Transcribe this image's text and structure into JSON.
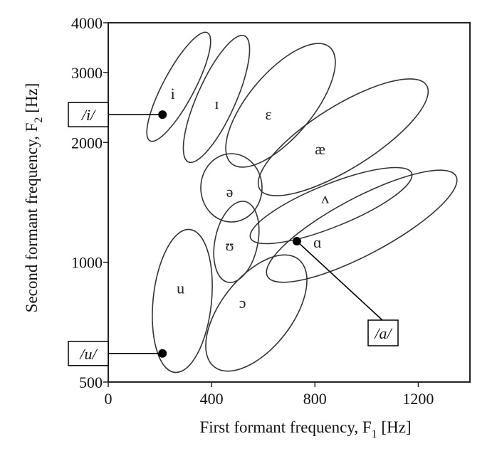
{
  "chart_data": {
    "type": "scatter",
    "title": "",
    "xlabel": "First formant frequency, F1 [Hz]",
    "ylabel": "Second formant frequency, F2 [Hz]",
    "xlabel_main": "First formant frequency, F",
    "xlabel_sub": "1",
    "xlabel_unit": " [Hz]",
    "ylabel_main": "Second formant frequency, F",
    "ylabel_sub": "2",
    "ylabel_unit": " [Hz]",
    "xlim": [
      0,
      1400
    ],
    "ylim": [
      500,
      4000
    ],
    "y_scale": "log",
    "grid": false,
    "x_ticks": [
      {
        "value": 0,
        "label": "0"
      },
      {
        "value": 400,
        "label": "400"
      },
      {
        "value": 800,
        "label": "800"
      },
      {
        "value": 1200,
        "label": "1200"
      }
    ],
    "y_ticks": [
      {
        "value": 500,
        "label": "500"
      },
      {
        "value": 1000,
        "label": "1000"
      },
      {
        "value": 2000,
        "label": "2000"
      },
      {
        "value": 3000,
        "label": "3000"
      },
      {
        "value": 4000,
        "label": "4000"
      }
    ],
    "vowel_regions": [
      {
        "symbol": "i",
        "label_f1": 250,
        "label_f2": 2650
      },
      {
        "symbol": "ɪ",
        "label_f1": 420,
        "label_f2": 2500
      },
      {
        "symbol": "ɛ",
        "label_f1": 620,
        "label_f2": 2350
      },
      {
        "symbol": "æ",
        "label_f1": 820,
        "label_f2": 1920
      },
      {
        "symbol": "ə",
        "label_f1": 470,
        "label_f2": 1500
      },
      {
        "symbol": "ʌ",
        "label_f1": 840,
        "label_f2": 1450
      },
      {
        "symbol": "ʊ",
        "label_f1": 470,
        "label_f2": 1100
      },
      {
        "symbol": "ɑ",
        "label_f1": 810,
        "label_f2": 1120
      },
      {
        "symbol": "u",
        "label_f1": 280,
        "label_f2": 860
      },
      {
        "symbol": "ɔ",
        "label_f1": 520,
        "label_f2": 790
      }
    ],
    "marked_points": [
      {
        "label": "/i/",
        "f1": 210,
        "f2": 2350,
        "side": "left"
      },
      {
        "label": "/u/",
        "f1": 210,
        "f2": 590,
        "side": "left"
      },
      {
        "label": "/a/",
        "f1": 730,
        "f2": 1130,
        "side": "right"
      }
    ]
  }
}
